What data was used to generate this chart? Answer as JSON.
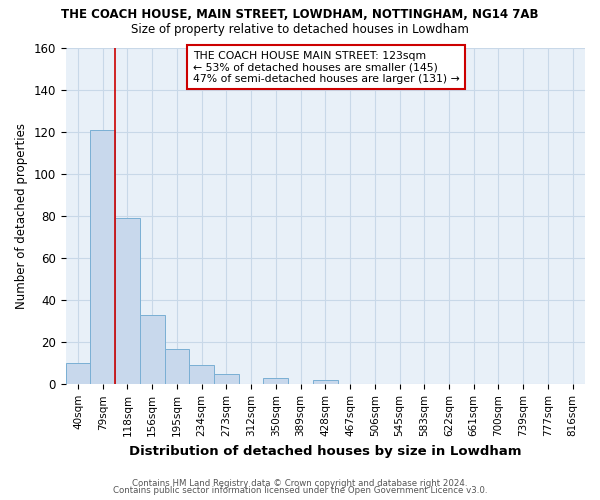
{
  "title1": "THE COACH HOUSE, MAIN STREET, LOWDHAM, NOTTINGHAM, NG14 7AB",
  "title2": "Size of property relative to detached houses in Lowdham",
  "xlabel": "Distribution of detached houses by size in Lowdham",
  "ylabel": "Number of detached properties",
  "footer1": "Contains HM Land Registry data © Crown copyright and database right 2024.",
  "footer2": "Contains public sector information licensed under the Open Government Licence v3.0.",
  "bins": [
    "40sqm",
    "79sqm",
    "118sqm",
    "156sqm",
    "195sqm",
    "234sqm",
    "273sqm",
    "312sqm",
    "350sqm",
    "389sqm",
    "428sqm",
    "467sqm",
    "506sqm",
    "545sqm",
    "583sqm",
    "622sqm",
    "661sqm",
    "700sqm",
    "739sqm",
    "777sqm",
    "816sqm"
  ],
  "values": [
    10,
    121,
    79,
    33,
    17,
    9,
    5,
    0,
    3,
    0,
    2,
    0,
    0,
    0,
    0,
    0,
    0,
    0,
    0,
    0,
    0
  ],
  "bar_color": "#c8d8ec",
  "bar_edge_color": "#7aafd4",
  "red_line_x": 1.5,
  "annotation_text": "THE COACH HOUSE MAIN STREET: 123sqm\n← 53% of detached houses are smaller (145)\n47% of semi-detached houses are larger (131) →",
  "ylim": [
    0,
    160
  ],
  "yticks": [
    0,
    20,
    40,
    60,
    80,
    100,
    120,
    140,
    160
  ],
  "annotation_box_color": "white",
  "annotation_box_edge": "#cc0000",
  "grid_color": "#c8d8e8",
  "bg_color": "#ffffff",
  "plot_bg_color": "#e8f0f8"
}
